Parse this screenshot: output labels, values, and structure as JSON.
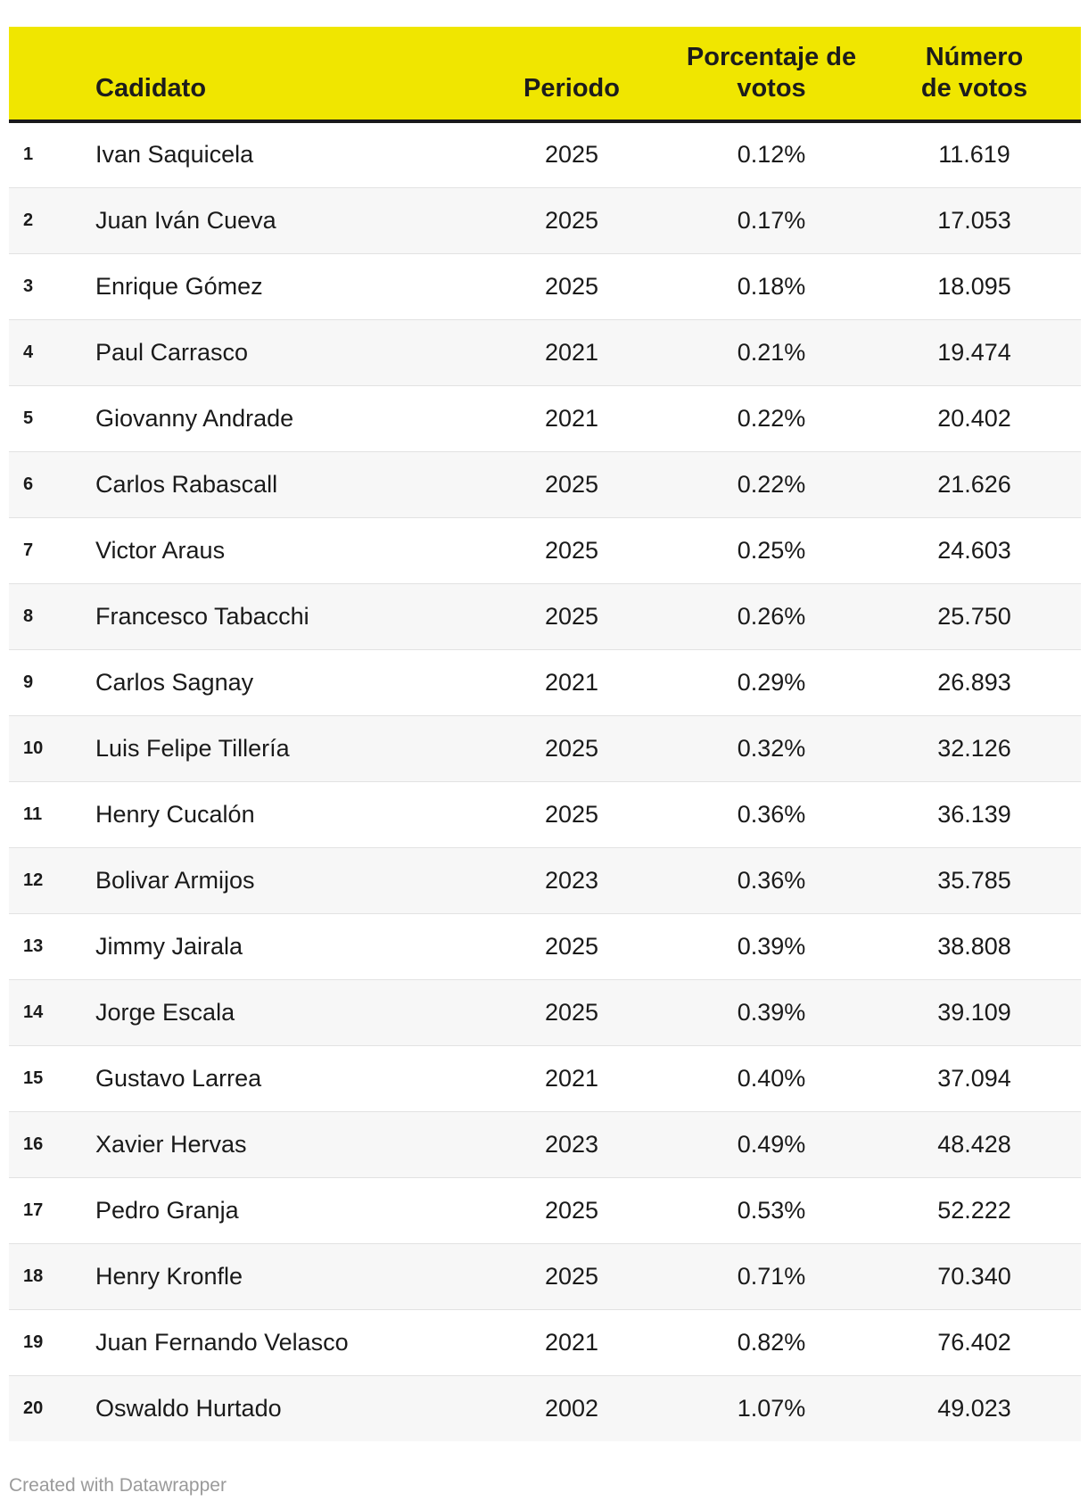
{
  "chart_data": {
    "type": "table",
    "columns": [
      "",
      "Cadidato",
      "Periodo",
      "Porcentaje de votos",
      "Número de votos"
    ],
    "rows": [
      {
        "rank": "1",
        "name": "Ivan Saquicela",
        "period": "2025",
        "pct": "0.12%",
        "votes": "11.619"
      },
      {
        "rank": "2",
        "name": "Juan Iván Cueva",
        "period": "2025",
        "pct": "0.17%",
        "votes": "17.053"
      },
      {
        "rank": "3",
        "name": "Enrique Gómez",
        "period": "2025",
        "pct": "0.18%",
        "votes": "18.095"
      },
      {
        "rank": "4",
        "name": "Paul Carrasco",
        "period": "2021",
        "pct": "0.21%",
        "votes": "19.474"
      },
      {
        "rank": "5",
        "name": "Giovanny Andrade",
        "period": "2021",
        "pct": "0.22%",
        "votes": "20.402"
      },
      {
        "rank": "6",
        "name": "Carlos Rabascall",
        "period": "2025",
        "pct": "0.22%",
        "votes": "21.626"
      },
      {
        "rank": "7",
        "name": "Victor Araus",
        "period": "2025",
        "pct": "0.25%",
        "votes": "24.603"
      },
      {
        "rank": "8",
        "name": "Francesco Tabacchi",
        "period": "2025",
        "pct": "0.26%",
        "votes": "25.750"
      },
      {
        "rank": "9",
        "name": "Carlos Sagnay",
        "period": "2021",
        "pct": "0.29%",
        "votes": "26.893"
      },
      {
        "rank": "10",
        "name": "Luis Felipe Tillería",
        "period": "2025",
        "pct": "0.32%",
        "votes": "32.126"
      },
      {
        "rank": "11",
        "name": "Henry Cucalón",
        "period": "2025",
        "pct": "0.36%",
        "votes": "36.139"
      },
      {
        "rank": "12",
        "name": "Bolivar Armijos",
        "period": "2023",
        "pct": "0.36%",
        "votes": "35.785"
      },
      {
        "rank": "13",
        "name": "Jimmy Jairala",
        "period": "2025",
        "pct": "0.39%",
        "votes": "38.808"
      },
      {
        "rank": "14",
        "name": "Jorge Escala",
        "period": "2025",
        "pct": "0.39%",
        "votes": "39.109"
      },
      {
        "rank": "15",
        "name": "Gustavo Larrea",
        "period": "2021",
        "pct": "0.40%",
        "votes": "37.094"
      },
      {
        "rank": "16",
        "name": "Xavier Hervas",
        "period": "2023",
        "pct": "0.49%",
        "votes": "48.428"
      },
      {
        "rank": "17",
        "name": "Pedro Granja",
        "period": "2025",
        "pct": "0.53%",
        "votes": "52.222"
      },
      {
        "rank": "18",
        "name": "Henry Kronfle",
        "period": "2025",
        "pct": "0.71%",
        "votes": "70.340"
      },
      {
        "rank": "19",
        "name": "Juan Fernando Velasco",
        "period": "2021",
        "pct": "0.82%",
        "votes": "76.402"
      },
      {
        "rank": "20",
        "name": "Oswaldo Hurtado",
        "period": "2002",
        "pct": "1.07%",
        "votes": "49.023"
      }
    ]
  },
  "header": {
    "candidate": "Cadidato",
    "period": "Periodo",
    "pct_line1": "Porcentaje de",
    "pct_line2": "votos",
    "votes_line1": "Número",
    "votes_line2": "de votos"
  },
  "credit": "Created with Datawrapper",
  "colors": {
    "header_bg": "#f0e600",
    "stripe": "#f7f7f7",
    "credit_text": "#9a9a9a"
  }
}
